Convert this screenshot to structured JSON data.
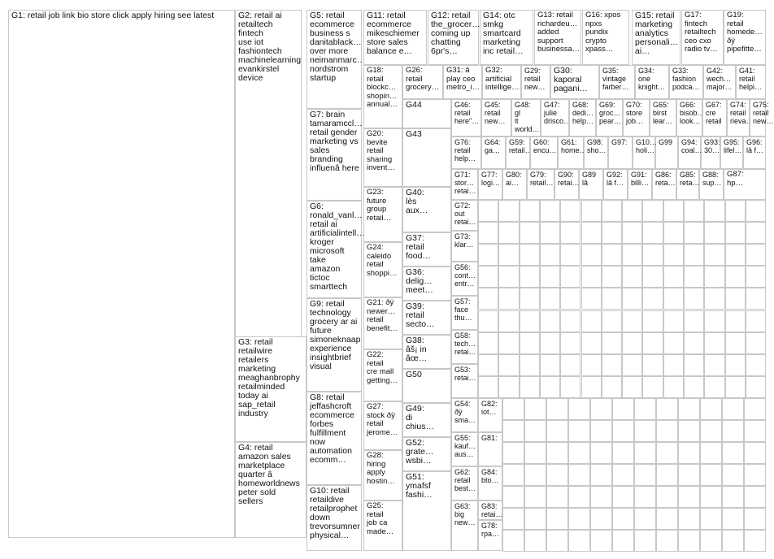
{
  "title": "",
  "colors": {
    "node_main": "#1f3a93",
    "edge": "#b5b5b5",
    "ring": "#e0191b",
    "border": "#c8c8c8"
  },
  "groups": [
    {
      "id": "G1",
      "label": "G1: retail job link bio store click apply hiring see latest"
    },
    {
      "id": "G2",
      "label": "G2: retail ai\nretailtech fintech\nuse iot\nfashiontech\nmachinelearning\nevankirstel\ndevice"
    },
    {
      "id": "G3",
      "label": "G3: retail\nretailwire\nretailers\nmarketing\nmeaghanbrophy\nretailminded\ntoday ai\nsap_retail\nindustry"
    },
    {
      "id": "G4",
      "label": "G4: retail\namazon sales\nmarketplace\nquarter â\nhomeworldnews\npeter sold\nsellers"
    },
    {
      "id": "G5",
      "label": "G5: retail\necommerce\nbusiness s\ndanitablack…\nover more\nneimanmarc…\nnordstrom\nstartup"
    },
    {
      "id": "G6",
      "label": "G6:\nronald_vanl…\nretail ai\nartificialintell…\nkroger\nmicrosoft take\namazon tictoc\nsmarttech"
    },
    {
      "id": "G7",
      "label": "G7: brain\ntamaramccl…\nretail gender\nmarketing vs\nsales\nbranding\ninfluenâ here"
    },
    {
      "id": "G8",
      "label": "G8: retail\njeffashcroft\necommerce\nforbes\nfulfillment\nnow\nautomation\necomm…"
    },
    {
      "id": "G9",
      "label": "G9: retail\ntechnology\ngrocery ar ai\nfuture\nsimoneknaap\nexperience\ninsightbrief\nvisual"
    },
    {
      "id": "G10",
      "label": "G10: retail\nretaildive\nretailprophet\ndown\ntrevorsumner\nphysical…"
    },
    {
      "id": "G11",
      "label": "G11: retail\necommerce\nmikeschiemer\nstore sales\nbalance e…"
    },
    {
      "id": "G12",
      "label": "G12: retail\nthe_grocer…\ncoming up\nchatting\n6pr's…"
    },
    {
      "id": "G13",
      "label": "G13: retail\nrichardeu…\nadded\nsupport\nbusinessa…"
    },
    {
      "id": "G14",
      "label": "G14: otc\nsmkg\nsmartcard\nmarketing\ninc retail…"
    },
    {
      "id": "G15",
      "label": "G15: retail\nmarketing\nanalytics\npersonali…\nai…"
    },
    {
      "id": "G16",
      "label": "G16: xpos\nnpxs\npundix\ncrypto\nxpass…"
    },
    {
      "id": "G17",
      "label": "G17:\nfintech\nretailtech\nceo cxo\nradio tv…"
    },
    {
      "id": "G18",
      "label": "G18:\nretail\nblockc…\nshopin…\nannual…"
    },
    {
      "id": "G19",
      "label": "G19:\nretail\nhomede…\nðÿ\npipefitte…"
    },
    {
      "id": "G20",
      "label": "G20:\nbevite\nretail\nsharing\ninvent…"
    },
    {
      "id": "G21",
      "label": "G21: ðÿ\nnewer…\nretail\nbenefit…"
    },
    {
      "id": "G22",
      "label": "G22:\nretail\ncre mall\ngetting…"
    },
    {
      "id": "G23",
      "label": "G23:\nfuture\ngroup\nretail…"
    },
    {
      "id": "G24",
      "label": "G24:\ncaleido\nretail\nshoppi…"
    },
    {
      "id": "G25",
      "label": "G25:\nretail\njob ca\nmade…"
    },
    {
      "id": "G26",
      "label": "G26:\nretail\ngrocery…"
    },
    {
      "id": "G27",
      "label": "G27:\nstock ðÿ\nretail\njerome…"
    },
    {
      "id": "G28",
      "label": "G28:\nhiring\napply\nhostin…"
    },
    {
      "id": "G29",
      "label": "G29:\nretail\nnew…"
    },
    {
      "id": "G30",
      "label": "G30:\nkaporal\npagani…"
    },
    {
      "id": "G31",
      "label": "G31: â\nplay ceo\nmetro_i…"
    },
    {
      "id": "G32",
      "label": "G32:\nartificial\nintellige…"
    },
    {
      "id": "G33",
      "label": "G33:\nfashion\npodca…"
    },
    {
      "id": "G34",
      "label": "G34:\none\nknight…"
    },
    {
      "id": "G35",
      "label": "G35:\nvintage\nfarber…"
    },
    {
      "id": "G36",
      "label": "G36:\ndelig…\nmeet…"
    },
    {
      "id": "G37",
      "label": "G37:\nretail\nfood…"
    },
    {
      "id": "G38",
      "label": "G38:\nâš¡ in\nâœ…"
    },
    {
      "id": "G39",
      "label": "G39:\nretail\nsecto…"
    },
    {
      "id": "G40",
      "label": "G40:\nlès\naux…"
    },
    {
      "id": "G41",
      "label": "G41:\nretail\nhelpi…"
    },
    {
      "id": "G42",
      "label": "G42:\nwech…\nmajor…"
    },
    {
      "id": "G43",
      "label": "G43"
    },
    {
      "id": "G44",
      "label": "G44"
    },
    {
      "id": "G45",
      "label": "G45:\nretail\nnew…"
    },
    {
      "id": "G46",
      "label": "G46:\nretail\nhere\"…"
    },
    {
      "id": "G47",
      "label": "G47:\njulie\ndrisco…"
    },
    {
      "id": "G48",
      "label": "G48: gl\nlt\nworld…"
    },
    {
      "id": "G49",
      "label": "G49:\ndi\nchius…"
    },
    {
      "id": "G50",
      "label": "G50"
    },
    {
      "id": "G51",
      "label": "G51:\nymafsf\nfashi…"
    },
    {
      "id": "G52",
      "label": "G52:\ngrate…\nwsbi…"
    },
    {
      "id": "G53",
      "label": "G53:\nretai…"
    },
    {
      "id": "G54",
      "label": "G54:\nðÿ\nsma…"
    },
    {
      "id": "G55",
      "label": "G55:\nkauf…\naus…"
    },
    {
      "id": "G56",
      "label": "G56:\ncont…\nentr…"
    },
    {
      "id": "G57",
      "label": "G57:\nface\nthu…"
    },
    {
      "id": "G58",
      "label": "G58:\ntech…\nretai…"
    },
    {
      "id": "G59",
      "label": "G59:\nretail…"
    },
    {
      "id": "G60",
      "label": "G60:\nencu…"
    },
    {
      "id": "G61",
      "label": "G61:\nhome…"
    },
    {
      "id": "G62",
      "label": "G62:\nretail\nbest…"
    },
    {
      "id": "G63",
      "label": "G63:\nbig\nnew…"
    },
    {
      "id": "G64",
      "label": "G64:\nga…"
    },
    {
      "id": "G65",
      "label": "G65:\nbirst\nlear…"
    },
    {
      "id": "G66",
      "label": "G66:\nbisob…\nlook…"
    },
    {
      "id": "G67",
      "label": "G67:\ncre\nretail"
    },
    {
      "id": "G68",
      "label": "G68:\ndedi…\nhelp…"
    },
    {
      "id": "G69",
      "label": "G69:\ngroc…\npear…"
    },
    {
      "id": "G70",
      "label": "G70:\nstore\njob…"
    },
    {
      "id": "G71",
      "label": "G71:\nstor…\nretai…"
    },
    {
      "id": "G72",
      "label": "G72:\nout\nretai…"
    },
    {
      "id": "G73",
      "label": "G73:\nklar…"
    },
    {
      "id": "G74",
      "label": "G74:\nretail\nrieva…"
    },
    {
      "id": "G75",
      "label": "G75:\nretail\nnew…"
    },
    {
      "id": "G76",
      "label": "G76:\nretail\nhelp…"
    },
    {
      "id": "G77",
      "label": "G77:\nlogi…"
    },
    {
      "id": "G78",
      "label": "G78:\nrpa…"
    },
    {
      "id": "G79",
      "label": "G79:\nretail…"
    },
    {
      "id": "G80",
      "label": "G80:\nai…"
    },
    {
      "id": "G81",
      "label": "G81:"
    },
    {
      "id": "G82",
      "label": "G82:\niot…"
    },
    {
      "id": "G83",
      "label": "G83:\nretai…"
    },
    {
      "id": "G84",
      "label": "G84:\nbto…"
    },
    {
      "id": "G85",
      "label": "G85:\nreta…"
    },
    {
      "id": "G86",
      "label": "G86:\nreta…"
    },
    {
      "id": "G87",
      "label": "G87:\nhp…"
    },
    {
      "id": "G88",
      "label": "G88:\nsup…"
    },
    {
      "id": "G89",
      "label": "G89\nlâ"
    },
    {
      "id": "G90",
      "label": "G90:\nretai…"
    },
    {
      "id": "G91",
      "label": "G91:\nbilli…"
    },
    {
      "id": "G92",
      "label": "G92:\nlâ f…"
    },
    {
      "id": "G93",
      "label": "G93:\n30…"
    },
    {
      "id": "G94",
      "label": "G94:\ncoal…"
    },
    {
      "id": "G95",
      "label": "G95:\nlifel…"
    },
    {
      "id": "G96",
      "label": "G96:\nlâ f…"
    },
    {
      "id": "G97",
      "label": "G97:"
    },
    {
      "id": "G98",
      "label": "G98:\nsho…"
    },
    {
      "id": "G99",
      "label": "G99"
    },
    {
      "id": "G100",
      "label": "G10…\nholi…"
    }
  ]
}
